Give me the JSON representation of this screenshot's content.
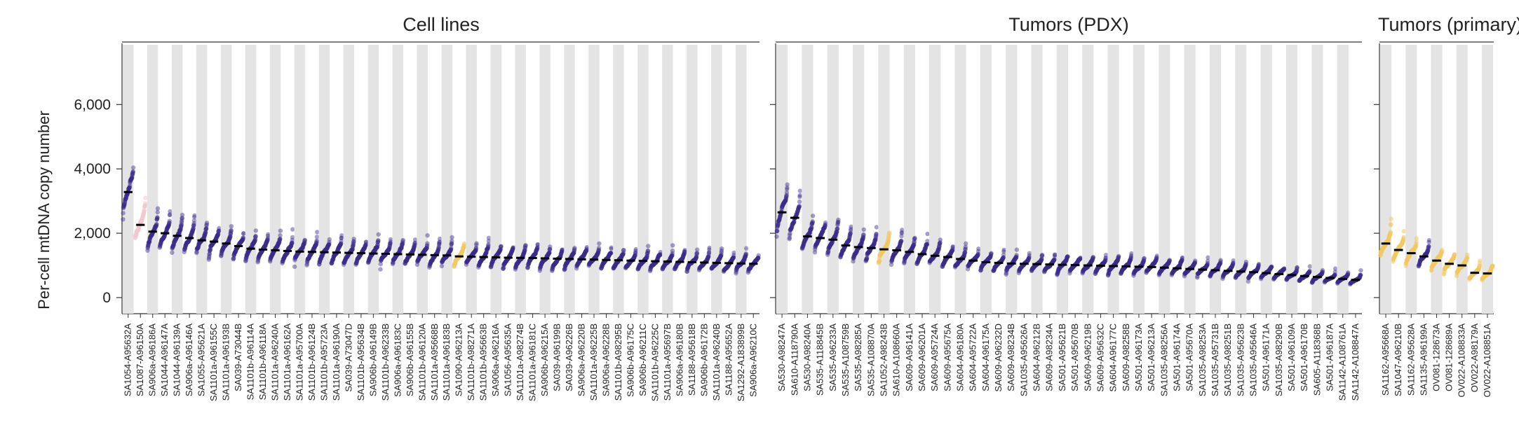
{
  "chart_data": {
    "type": "scatter",
    "ylabel": "Per-cell mtDNA copy number",
    "yticks": [
      0,
      2000,
      4000,
      6000
    ],
    "ytick_labels": [
      "0",
      "2,000",
      "4,000",
      "6,000"
    ],
    "ylim": [
      -500,
      7900
    ],
    "point_colors": {
      "dark": "#3b2a8c",
      "yellow": "#f3c861",
      "pink": "#f4c7cf"
    },
    "panels": [
      {
        "title": "Cell lines",
        "samples": [
          {
            "name": "SA1054-A95632A",
            "median": 3280,
            "color": "dark"
          },
          {
            "name": "SA1087-A96150A",
            "median": 2260,
            "color": "pink"
          },
          {
            "name": "SA906a-A96186A",
            "median": 2050,
            "color": "dark"
          },
          {
            "name": "SA1044-A96147A",
            "median": 2000,
            "color": "dark"
          },
          {
            "name": "SA1044-A96139A",
            "median": 1920,
            "color": "dark"
          },
          {
            "name": "SA906a-A96146A",
            "median": 1850,
            "color": "dark"
          },
          {
            "name": "SA1055-A95621A",
            "median": 1780,
            "color": "dark"
          },
          {
            "name": "SA1101a-A96155C",
            "median": 1740,
            "color": "dark"
          },
          {
            "name": "SA1101a-A96193B",
            "median": 1680,
            "color": "dark"
          },
          {
            "name": "SA039-A73044B",
            "median": 1600,
            "color": "dark"
          },
          {
            "name": "SA1101b-A96114A",
            "median": 1520,
            "color": "dark"
          },
          {
            "name": "SA1101b-A96118A",
            "median": 1490,
            "color": "dark"
          },
          {
            "name": "SA1101a-A96240A",
            "median": 1470,
            "color": "dark"
          },
          {
            "name": "SA1101a-A96162A",
            "median": 1450,
            "color": "dark"
          },
          {
            "name": "SA1101a-A95700A",
            "median": 1430,
            "color": "dark"
          },
          {
            "name": "SA1101b-A96124B",
            "median": 1420,
            "color": "dark"
          },
          {
            "name": "SA1101b-A95723A",
            "median": 1410,
            "color": "dark"
          },
          {
            "name": "SA1101a-A96190A",
            "median": 1400,
            "color": "dark"
          },
          {
            "name": "SA039-A73047D",
            "median": 1390,
            "color": "dark"
          },
          {
            "name": "SA1101b-A95634B",
            "median": 1380,
            "color": "dark"
          },
          {
            "name": "SA906b-A96149B",
            "median": 1370,
            "color": "dark"
          },
          {
            "name": "SA1101b-A96233B",
            "median": 1360,
            "color": "dark"
          },
          {
            "name": "SA906a-A96183C",
            "median": 1350,
            "color": "dark"
          },
          {
            "name": "SA906b-A96155B",
            "median": 1340,
            "color": "dark"
          },
          {
            "name": "SA1101b-A96120A",
            "median": 1330,
            "color": "dark"
          },
          {
            "name": "SA1101a-A95668B",
            "median": 1320,
            "color": "dark"
          },
          {
            "name": "SA1101a-A96183B",
            "median": 1310,
            "color": "dark"
          },
          {
            "name": "SA1090-A96213A",
            "median": 1280,
            "color": "yellow"
          },
          {
            "name": "SA1101b-A98271A",
            "median": 1270,
            "color": "dark"
          },
          {
            "name": "SA1101b-A95663B",
            "median": 1260,
            "color": "dark"
          },
          {
            "name": "SA906a-A96216A",
            "median": 1250,
            "color": "dark"
          },
          {
            "name": "SA1056-A95635A",
            "median": 1240,
            "color": "dark"
          },
          {
            "name": "SA1101a-A98274B",
            "median": 1235,
            "color": "dark"
          },
          {
            "name": "SA1101a-A96181C",
            "median": 1230,
            "color": "dark"
          },
          {
            "name": "SA906b-A96215A",
            "median": 1220,
            "color": "dark"
          },
          {
            "name": "SA039-A96199B",
            "median": 1210,
            "color": "dark"
          },
          {
            "name": "SA039-A96226B",
            "median": 1200,
            "color": "dark"
          },
          {
            "name": "SA906a-A96220B",
            "median": 1190,
            "color": "dark"
          },
          {
            "name": "SA1101a-A96225B",
            "median": 1180,
            "color": "dark"
          },
          {
            "name": "SA906a-A96228B",
            "median": 1170,
            "color": "dark"
          },
          {
            "name": "SA1101b-A98295B",
            "median": 1160,
            "color": "dark"
          },
          {
            "name": "SA906b-A96175C",
            "median": 1150,
            "color": "dark"
          },
          {
            "name": "SA906b-A96211C",
            "median": 1140,
            "color": "dark"
          },
          {
            "name": "SA1101b-A96225C",
            "median": 1130,
            "color": "dark"
          },
          {
            "name": "SA1101a-A95697B",
            "median": 1120,
            "color": "dark"
          },
          {
            "name": "SA906a-A96180B",
            "median": 1110,
            "color": "dark"
          },
          {
            "name": "SA1188-A95618B",
            "median": 1100,
            "color": "dark"
          },
          {
            "name": "SA906b-A96172B",
            "median": 1090,
            "color": "dark"
          },
          {
            "name": "SA1101a-A96240B",
            "median": 1080,
            "color": "dark"
          },
          {
            "name": "SA1188-A95652A",
            "median": 1070,
            "color": "dark"
          },
          {
            "name": "SA1292-A183899B",
            "median": 1060,
            "color": "dark"
          },
          {
            "name": "SA906a-A96210C",
            "median": 1050,
            "color": "dark"
          }
        ]
      },
      {
        "title": "Tumors (PDX)",
        "samples": [
          {
            "name": "SA530-A98247A",
            "median": 2650,
            "color": "dark"
          },
          {
            "name": "SA610-A118790A",
            "median": 2480,
            "color": "dark"
          },
          {
            "name": "SA530-A98240A",
            "median": 1900,
            "color": "dark"
          },
          {
            "name": "SA535-A118845B",
            "median": 1850,
            "color": "dark"
          },
          {
            "name": "SA535-A96233A",
            "median": 1800,
            "color": "dark"
          },
          {
            "name": "SA535-A108759B",
            "median": 1620,
            "color": "dark"
          },
          {
            "name": "SA535-A98285A",
            "median": 1570,
            "color": "dark"
          },
          {
            "name": "SA535-A108870A",
            "median": 1540,
            "color": "dark"
          },
          {
            "name": "SA1052-A98243B",
            "median": 1500,
            "color": "yellow"
          },
          {
            "name": "SA610-A108660A",
            "median": 1470,
            "color": "dark"
          },
          {
            "name": "SA609-A96141A",
            "median": 1420,
            "color": "dark"
          },
          {
            "name": "SA609-A96201A",
            "median": 1350,
            "color": "dark"
          },
          {
            "name": "SA609-A95724A",
            "median": 1300,
            "color": "dark"
          },
          {
            "name": "SA609-A95675A",
            "median": 1260,
            "color": "dark"
          },
          {
            "name": "SA604-A96180A",
            "median": 1200,
            "color": "dark"
          },
          {
            "name": "SA604-A95722A",
            "median": 1150,
            "color": "dark"
          },
          {
            "name": "SA604-A96175A",
            "median": 1100,
            "color": "dark"
          },
          {
            "name": "SA609-A96232D",
            "median": 1080,
            "color": "dark"
          },
          {
            "name": "SA609-A98234B",
            "median": 1060,
            "color": "dark"
          },
          {
            "name": "SA1035-A95626A",
            "median": 1050,
            "color": "dark"
          },
          {
            "name": "SA604-A96212B",
            "median": 1040,
            "color": "dark"
          },
          {
            "name": "SA609-A98234A",
            "median": 1030,
            "color": "dark"
          },
          {
            "name": "SA501-A95621B",
            "median": 1020,
            "color": "dark"
          },
          {
            "name": "SA501-A95670B",
            "median": 1010,
            "color": "dark"
          },
          {
            "name": "SA609-A96219B",
            "median": 1000,
            "color": "dark"
          },
          {
            "name": "SA609-A95632C",
            "median": 990,
            "color": "dark"
          },
          {
            "name": "SA604-A96177C",
            "median": 980,
            "color": "dark"
          },
          {
            "name": "SA609-A98258B",
            "median": 970,
            "color": "dark"
          },
          {
            "name": "SA501-A96173A",
            "median": 960,
            "color": "dark"
          },
          {
            "name": "SA501-A96213A",
            "median": 950,
            "color": "dark"
          },
          {
            "name": "SA1035-A98256A",
            "median": 930,
            "color": "dark"
          },
          {
            "name": "SA501-A96174A",
            "median": 910,
            "color": "dark"
          },
          {
            "name": "SA501-A95670A",
            "median": 890,
            "color": "dark"
          },
          {
            "name": "SA1035-A98253A",
            "median": 870,
            "color": "dark"
          },
          {
            "name": "SA1035-A95731B",
            "median": 850,
            "color": "dark"
          },
          {
            "name": "SA1035-A98251B",
            "median": 830,
            "color": "dark"
          },
          {
            "name": "SA1035-A95623B",
            "median": 810,
            "color": "dark"
          },
          {
            "name": "SA1035-A95646A",
            "median": 790,
            "color": "dark"
          },
          {
            "name": "SA501-A96171A",
            "median": 760,
            "color": "dark"
          },
          {
            "name": "SA1035-A98290B",
            "median": 730,
            "color": "dark"
          },
          {
            "name": "SA501-A96109A",
            "median": 700,
            "color": "dark"
          },
          {
            "name": "SA501-A96170B",
            "median": 670,
            "color": "dark"
          },
          {
            "name": "SA605-A118368B",
            "median": 640,
            "color": "dark"
          },
          {
            "name": "SA501-A96187A",
            "median": 610,
            "color": "dark"
          },
          {
            "name": "SA1142-A108761A",
            "median": 580,
            "color": "dark"
          },
          {
            "name": "SA1142-A108847A",
            "median": 550,
            "color": "dark"
          }
        ]
      },
      {
        "title": "Tumors (primary)",
        "samples": [
          {
            "name": "SA1162-A95668A",
            "median": 1680,
            "color": "yellow"
          },
          {
            "name": "SA1047-A96210B",
            "median": 1480,
            "color": "yellow"
          },
          {
            "name": "SA1162-A95628A",
            "median": 1380,
            "color": "yellow"
          },
          {
            "name": "SA1135-A96199A",
            "median": 1280,
            "color": "dark"
          },
          {
            "name": "OV081-128673A",
            "median": 1150,
            "color": "yellow"
          },
          {
            "name": "OV081-128689A",
            "median": 1050,
            "color": "yellow"
          },
          {
            "name": "OV022-A108833A",
            "median": 1000,
            "color": "yellow"
          },
          {
            "name": "OV022-A98179A",
            "median": 770,
            "color": "yellow"
          },
          {
            "name": "OV022-A108851A",
            "median": 750,
            "color": "yellow"
          }
        ]
      }
    ]
  }
}
